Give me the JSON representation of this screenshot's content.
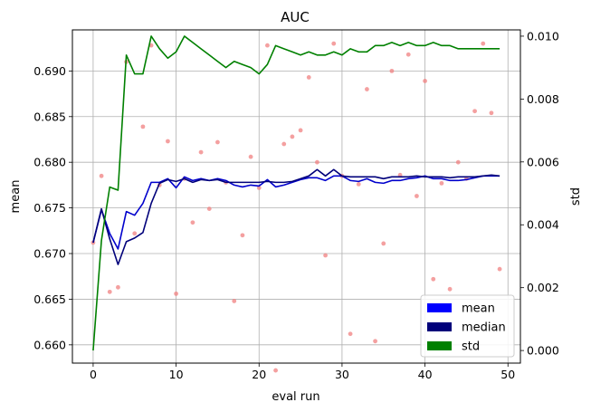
{
  "chart_data": {
    "type": "line",
    "title": "AUC",
    "xlabel": "eval run",
    "ylabel": "mean",
    "y2label": "std",
    "xlim": [
      -2.5,
      51.5
    ],
    "ylim": [
      0.658,
      0.6945
    ],
    "y2lim": [
      -0.0004,
      0.0102
    ],
    "xticks": [
      0,
      10,
      20,
      30,
      40,
      50
    ],
    "yticks": [
      0.66,
      0.665,
      0.67,
      0.675,
      0.68,
      0.685,
      0.69
    ],
    "ytick_labels": [
      "0.660",
      "0.665",
      "0.670",
      "0.675",
      "0.680",
      "0.685",
      "0.690"
    ],
    "y2ticks": [
      0.0,
      0.002,
      0.004,
      0.006,
      0.008,
      0.01
    ],
    "y2tick_labels": [
      "0.000",
      "0.002",
      "0.004",
      "0.006",
      "0.008",
      "0.010"
    ],
    "grid": true,
    "legend_position": "lower-right",
    "x": [
      0,
      1,
      2,
      3,
      4,
      5,
      6,
      7,
      8,
      9,
      10,
      11,
      12,
      13,
      14,
      15,
      16,
      17,
      18,
      19,
      20,
      21,
      22,
      23,
      24,
      25,
      26,
      27,
      28,
      29,
      30,
      31,
      32,
      33,
      34,
      35,
      36,
      37,
      38,
      39,
      40,
      41,
      42,
      43,
      44,
      45,
      46,
      47,
      48,
      49
    ],
    "series": [
      {
        "name": "mean",
        "color": "#0000cc",
        "axis": "left",
        "values": [
          0.6712,
          0.6748,
          0.6722,
          0.6705,
          0.6746,
          0.6742,
          0.6755,
          0.6778,
          0.6778,
          0.6782,
          0.6772,
          0.6784,
          0.678,
          0.6782,
          0.678,
          0.6782,
          0.678,
          0.6775,
          0.6773,
          0.6775,
          0.6774,
          0.6781,
          0.6773,
          0.6775,
          0.6778,
          0.6781,
          0.6783,
          0.6783,
          0.678,
          0.6785,
          0.6785,
          0.678,
          0.6779,
          0.6782,
          0.6778,
          0.6777,
          0.678,
          0.678,
          0.6782,
          0.6783,
          0.6785,
          0.6782,
          0.6782,
          0.678,
          0.678,
          0.6781,
          0.6783,
          0.6785,
          0.6785,
          0.6785
        ]
      },
      {
        "name": "median",
        "color": "#00007a",
        "axis": "left",
        "values": [
          0.6712,
          0.6749,
          0.6716,
          0.6688,
          0.6713,
          0.6717,
          0.6723,
          0.6755,
          0.6777,
          0.6781,
          0.6779,
          0.6782,
          0.6778,
          0.6781,
          0.678,
          0.6781,
          0.6778,
          0.6778,
          0.6778,
          0.6778,
          0.6778,
          0.6779,
          0.6778,
          0.6778,
          0.6779,
          0.6782,
          0.6785,
          0.6792,
          0.6785,
          0.6792,
          0.6785,
          0.6784,
          0.6784,
          0.6784,
          0.6784,
          0.6782,
          0.6784,
          0.6784,
          0.6784,
          0.6785,
          0.6784,
          0.6784,
          0.6784,
          0.6783,
          0.6784,
          0.6784,
          0.6784,
          0.6785,
          0.6786,
          0.6785
        ]
      },
      {
        "name": "std",
        "color": "#008000",
        "axis": "right",
        "values": [
          0.0,
          0.0035,
          0.0052,
          0.0051,
          0.0094,
          0.0088,
          0.0088,
          0.01,
          0.0096,
          0.0093,
          0.0095,
          0.01,
          0.0098,
          0.0096,
          0.0094,
          0.0092,
          0.009,
          0.0092,
          0.0091,
          0.009,
          0.0088,
          0.0091,
          0.0097,
          0.0096,
          0.0095,
          0.0094,
          0.0095,
          0.0094,
          0.0094,
          0.0095,
          0.0094,
          0.0096,
          0.0095,
          0.0095,
          0.0097,
          0.0097,
          0.0098,
          0.0097,
          0.0098,
          0.0097,
          0.0097,
          0.0098,
          0.0097,
          0.0097,
          0.0096,
          0.0096,
          0.0096,
          0.0096,
          0.0096,
          0.0096
        ]
      }
    ],
    "scatter": {
      "color": "#f08080",
      "axis": "left",
      "points": [
        [
          0,
          0.6712
        ],
        [
          1,
          0.6785
        ],
        [
          2,
          0.6658
        ],
        [
          3,
          0.6663
        ],
        [
          4,
          0.691
        ],
        [
          5,
          0.6722
        ],
        [
          6,
          0.6839
        ],
        [
          7,
          0.6928
        ],
        [
          8,
          0.6775
        ],
        [
          9,
          0.6823
        ],
        [
          10,
          0.6656
        ],
        [
          11,
          0.6782
        ],
        [
          12,
          0.6734
        ],
        [
          13,
          0.6811
        ],
        [
          14,
          0.6749
        ],
        [
          15,
          0.6822
        ],
        [
          16,
          0.6778
        ],
        [
          17,
          0.6648
        ],
        [
          18,
          0.672
        ],
        [
          19,
          0.6806
        ],
        [
          20,
          0.6772
        ],
        [
          21,
          0.6928
        ],
        [
          22,
          0.6572
        ],
        [
          23,
          0.682
        ],
        [
          24,
          0.6828
        ],
        [
          25,
          0.6835
        ],
        [
          26,
          0.6893
        ],
        [
          27,
          0.68
        ],
        [
          28,
          0.6698
        ],
        [
          29,
          0.693
        ],
        [
          30,
          0.6785
        ],
        [
          31,
          0.6612
        ],
        [
          32,
          0.6776
        ],
        [
          33,
          0.688
        ],
        [
          34,
          0.6604
        ],
        [
          35,
          0.6711
        ],
        [
          36,
          0.69
        ],
        [
          37,
          0.6786
        ],
        [
          38,
          0.6918
        ],
        [
          39,
          0.6763
        ],
        [
          40,
          0.6889
        ],
        [
          41,
          0.6672
        ],
        [
          42,
          0.6777
        ],
        [
          43,
          0.6661
        ],
        [
          44,
          0.68
        ],
        [
          45,
          0.6782
        ],
        [
          46,
          0.6856
        ],
        [
          47,
          0.693
        ],
        [
          48,
          0.6854
        ],
        [
          49,
          0.6683
        ]
      ]
    }
  }
}
